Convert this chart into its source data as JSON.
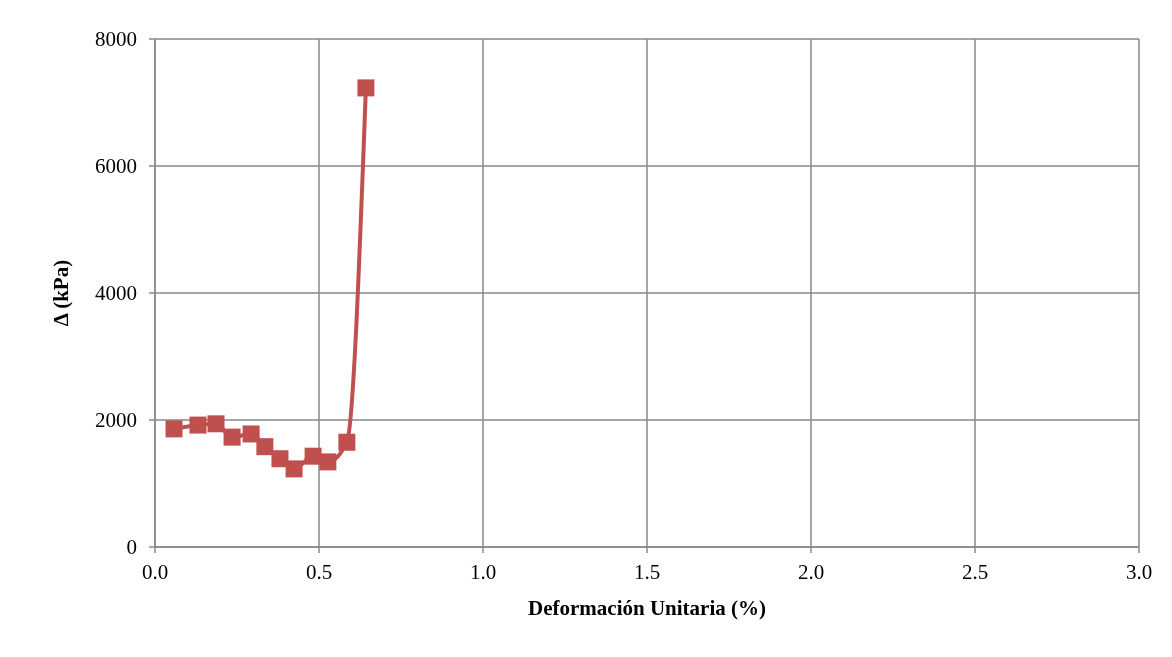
{
  "chart_data": {
    "type": "line",
    "xlabel": "Deformación Unitaria (%)",
    "ylabel": "Δ (kPa)",
    "x": [
      0.058,
      0.131,
      0.186,
      0.235,
      0.293,
      0.335,
      0.381,
      0.424,
      0.482,
      0.527,
      0.585,
      0.643
    ],
    "series": [
      {
        "color": "#c0504d",
        "values": [
          1860,
          1920,
          1940,
          1730,
          1780,
          1580,
          1390,
          1230,
          1430,
          1340,
          1650,
          7230
        ]
      }
    ],
    "xlim": [
      0,
      3
    ],
    "xticks": [
      {
        "value": 0,
        "label": "0.0"
      },
      {
        "value": 0.5,
        "label": "0.5"
      },
      {
        "value": 1,
        "label": "1.0"
      },
      {
        "value": 1.5,
        "label": "1.5"
      },
      {
        "value": 2,
        "label": "2.0"
      },
      {
        "value": 2.5,
        "label": "2.5"
      },
      {
        "value": 3,
        "label": "3.0"
      }
    ],
    "ylim": [
      0,
      8000
    ],
    "yticks": [
      0,
      2000,
      4000,
      6000,
      8000
    ],
    "grid": true,
    "marker": "square",
    "line_style": "solid"
  }
}
